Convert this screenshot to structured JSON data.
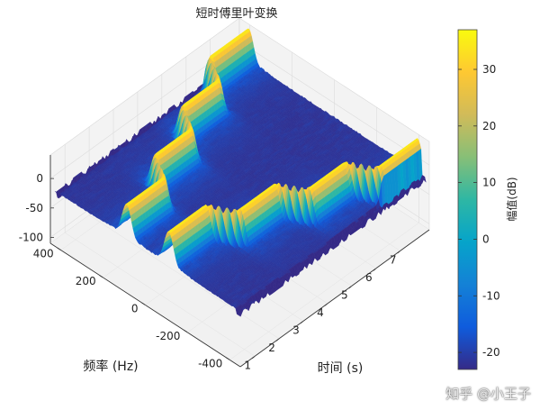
{
  "chart_data": {
    "type": "surface",
    "title": "短时傅里叶变换",
    "xlabel": "时间 (s)",
    "ylabel": "频率 (Hz)",
    "zlabel": "",
    "xlim": [
      0.4,
      8.2
    ],
    "ylim": [
      -450,
      450
    ],
    "zlim": [
      -110,
      40
    ],
    "xticks": [
      "1",
      "2",
      "3",
      "4",
      "5",
      "6",
      "7"
    ],
    "yticks": [
      "-400",
      "-200",
      "0",
      "200",
      "400"
    ],
    "zticks": [
      "-100",
      "-50",
      "0"
    ],
    "colorbar": {
      "label": "幅值(dB)",
      "range": [
        -23,
        37
      ],
      "ticks": [
        "-20",
        "-10",
        "0",
        "10",
        "20",
        "30"
      ],
      "colormap": "parula",
      "stops": [
        "#352a87",
        "#0f5cdd",
        "#1481d6",
        "#06a4ca",
        "#2eb7a4",
        "#87bf77",
        "#d1bb59",
        "#fec832",
        "#f9fb0e"
      ]
    },
    "noise_floor_db": -22,
    "peak_db": 35,
    "ridges": [
      {
        "name": "",
        "freq_hz_by_time": [
          [
            0.5,
            100
          ],
          [
            2.0,
            100
          ],
          [
            2.6,
            200
          ],
          [
            4.0,
            200
          ],
          [
            4.6,
            300
          ],
          [
            6.0,
            300
          ],
          [
            6.6,
            400
          ],
          [
            8.2,
            400
          ]
        ]
      },
      {
        "name": "",
        "freq_hz_by_time": [
          [
            0.5,
            -100
          ],
          [
            2.0,
            -100
          ],
          [
            2.6,
            -200
          ],
          [
            4.0,
            -200
          ],
          [
            4.6,
            -300
          ],
          [
            6.0,
            -300
          ],
          [
            6.6,
            -400
          ],
          [
            8.2,
            -400
          ]
        ]
      }
    ],
    "grid": true,
    "legend": "none"
  },
  "watermark": "知乎 @小王子"
}
